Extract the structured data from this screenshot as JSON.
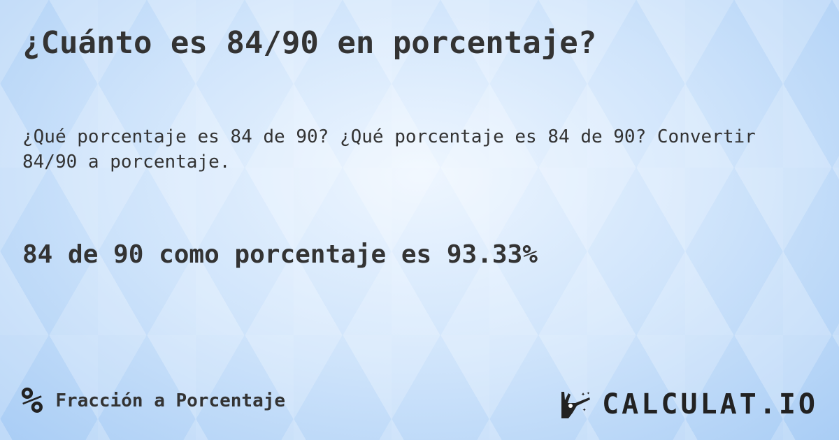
{
  "title": "¿Cuánto es 84/90 en porcentaje?",
  "subtitle": "¿Qué porcentaje es 84 de 90? ¿Qué porcentaje es 84 de 90? Convertir 84/90 a porcentaje.",
  "result": "84 de 90 como porcentaje es 93.33%",
  "footer": {
    "category_icon": "percent-icon",
    "category_symbol": "%",
    "category": "Fracción a Porcentaje",
    "logo_text": "CALCULAT.IO",
    "logo_icon": "magic-wand-hand-icon"
  }
}
